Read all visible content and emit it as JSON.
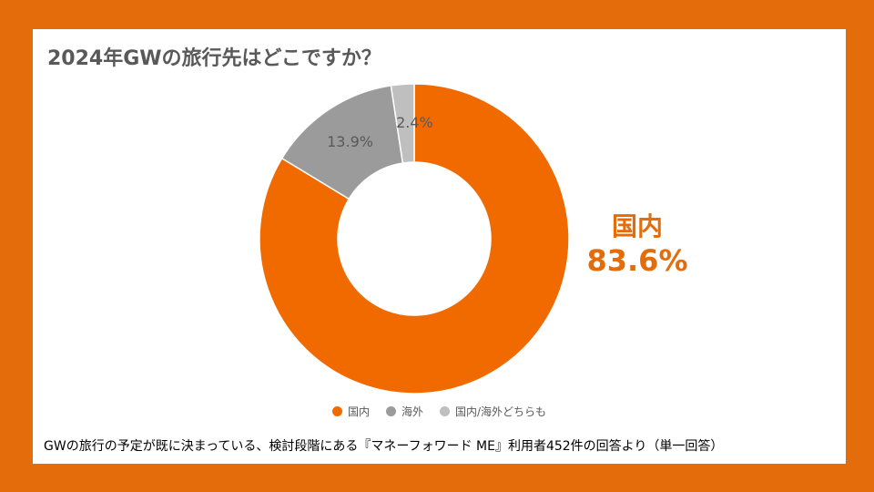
{
  "title": "2024年GWの旅行先はどこですか？",
  "footnote": "GWの旅行の予定が既に決まっている、検討段階にある『マネーフォワード ME』利用者452件の回答より（単一回答）",
  "chart_data": {
    "type": "pie",
    "title": "2024年GWの旅行先はどこですか？",
    "donut": true,
    "slices": [
      {
        "label": "国内",
        "value": 83.6,
        "display": "83.6%",
        "color": "#F06A00"
      },
      {
        "label": "海外",
        "value": 13.9,
        "display": "13.9%",
        "color": "#9B9B9B"
      },
      {
        "label": "国内/海外どちらも",
        "value": 2.4,
        "display": "2.4%",
        "color": "#BFBFBF"
      }
    ],
    "legend": "bottom",
    "callout": {
      "category": "国内",
      "value": "83.6%"
    }
  }
}
